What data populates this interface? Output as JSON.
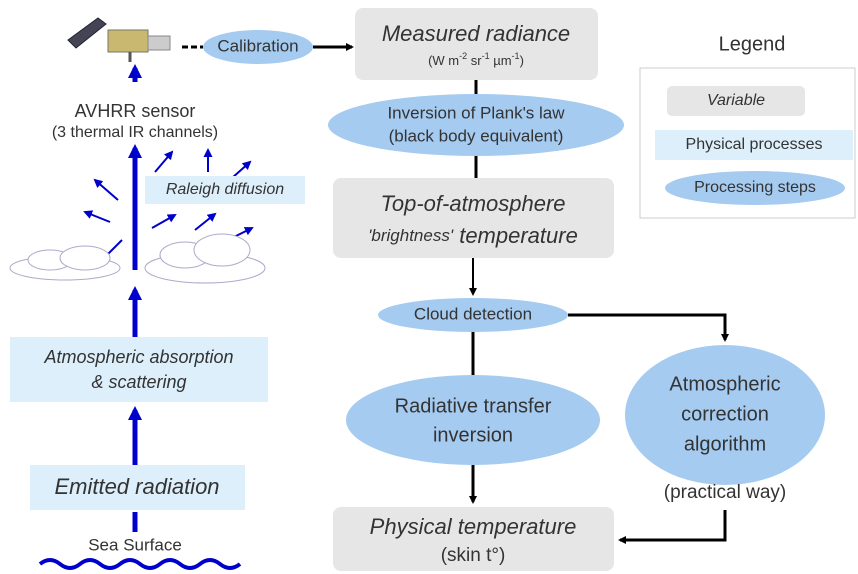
{
  "left": {
    "sensor": "AVHRR sensor",
    "channels": "(3 thermal IR channels)",
    "diffusion": "Raleigh diffusion",
    "absorption": [
      "Atmospheric absorption",
      "& scattering"
    ],
    "emitted": "Emitted radiation",
    "surface": "Sea Surface"
  },
  "flow": {
    "calibration": "Calibration",
    "measured": {
      "title": "Measured radiance",
      "units": [
        "(W m",
        "-2",
        " sr",
        "-1",
        " µm",
        "-1",
        ")"
      ]
    },
    "inversion": [
      "Inversion of Plank's law",
      "(black body equivalent)"
    ],
    "toa": {
      "line1": "Top-of-atmosphere",
      "line2": [
        "'brightness'",
        " temperature"
      ]
    },
    "cloud": "Cloud detection",
    "radiative": [
      "Radiative transfer",
      "inversion"
    ],
    "correction": [
      "Atmospheric",
      "correction",
      "algorithm"
    ],
    "practical": "(practical way)",
    "physical": {
      "title": "Physical temperature",
      "sub": "(skin t°)"
    }
  },
  "legend": {
    "title": "Legend",
    "variable": "Variable",
    "processes": "Physical processes",
    "steps": "Processing steps"
  }
}
